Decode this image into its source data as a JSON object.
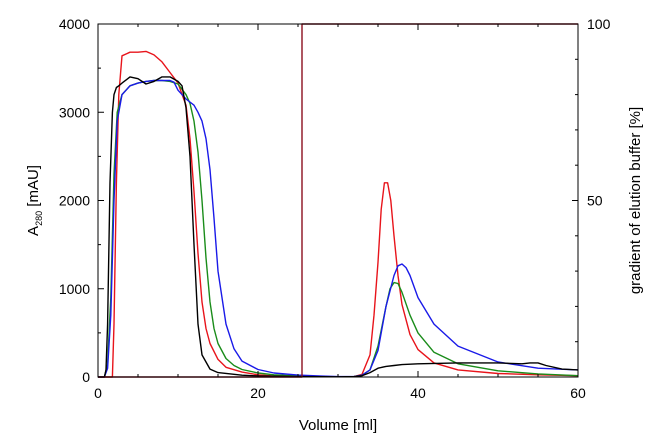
{
  "chart_data": {
    "type": "line",
    "xlabel": "Volume [ml]",
    "ylabel_main": "A",
    "ylabel_sub": "280",
    "ylabel_unit": " [mAU]",
    "y2label": "gradient of elution buffer [%]",
    "xlim": [
      0,
      60
    ],
    "ylim": [
      0,
      4000
    ],
    "y2lim": [
      0,
      100
    ],
    "xticks": [
      0,
      20,
      40,
      60
    ],
    "yticks": [
      0,
      1000,
      2000,
      3000,
      4000
    ],
    "y2ticks": [
      50,
      100
    ],
    "grid": false,
    "series": [
      {
        "color": "#e8141b",
        "x": [
          0,
          1,
          1.8,
          2,
          2.3,
          2.6,
          3,
          4,
          5,
          6,
          7,
          8,
          9,
          10,
          11,
          11.5,
          12,
          12.5,
          13,
          13.5,
          14,
          15,
          16,
          18,
          20,
          22,
          25,
          28,
          30,
          32,
          33,
          34,
          34.5,
          35,
          35.4,
          35.8,
          36.2,
          36.6,
          37,
          37.5,
          38,
          39,
          40,
          42,
          45,
          50,
          55,
          60
        ],
        "y": [
          0,
          0,
          0,
          600,
          2200,
          3200,
          3640,
          3680,
          3680,
          3690,
          3650,
          3570,
          3450,
          3330,
          3080,
          2700,
          2100,
          1400,
          850,
          550,
          380,
          200,
          110,
          55,
          25,
          10,
          5,
          3,
          3,
          5,
          30,
          250,
          700,
          1300,
          1900,
          2200,
          2200,
          2000,
          1600,
          1150,
          820,
          480,
          310,
          160,
          80,
          40,
          25,
          15
        ]
      },
      {
        "color": "#1a8c1a",
        "x": [
          0,
          0.8,
          1.2,
          1.6,
          2,
          2.4,
          3,
          4,
          5,
          6,
          7,
          8,
          9,
          10,
          10.5,
          11,
          11.5,
          12,
          12.5,
          13,
          13.5,
          14,
          14.5,
          15,
          16,
          17,
          18,
          20,
          22,
          25,
          28,
          30,
          32,
          33,
          34,
          35,
          36,
          36.5,
          37,
          37.5,
          38,
          39,
          40,
          42,
          45,
          50,
          55,
          60
        ],
        "y": [
          0,
          0,
          150,
          900,
          2300,
          3000,
          3200,
          3300,
          3330,
          3350,
          3360,
          3360,
          3350,
          3320,
          3260,
          3200,
          3100,
          2900,
          2550,
          2000,
          1350,
          850,
          550,
          380,
          210,
          130,
          85,
          45,
          25,
          12,
          5,
          3,
          5,
          20,
          80,
          350,
          800,
          1000,
          1070,
          1060,
          960,
          700,
          500,
          280,
          150,
          70,
          35,
          15
        ]
      },
      {
        "color": "#1a1ae8",
        "x": [
          0,
          0.8,
          1.2,
          1.6,
          2,
          2.4,
          3,
          4,
          5,
          6,
          7,
          8,
          9,
          9.5,
          10,
          11,
          12,
          12.5,
          13,
          13.5,
          14,
          14.5,
          15,
          16,
          17,
          18,
          20,
          22,
          25,
          28,
          30,
          32,
          33,
          34,
          35,
          36,
          37,
          37.5,
          38,
          38.5,
          39,
          40,
          42,
          45,
          50,
          55,
          60
        ],
        "y": [
          0,
          0,
          100,
          700,
          2000,
          2900,
          3200,
          3300,
          3330,
          3350,
          3360,
          3360,
          3360,
          3340,
          3250,
          3150,
          3080,
          3000,
          2900,
          2700,
          2350,
          1800,
          1200,
          600,
          320,
          180,
          85,
          45,
          22,
          10,
          5,
          4,
          20,
          80,
          300,
          800,
          1150,
          1260,
          1280,
          1240,
          1150,
          900,
          600,
          350,
          170,
          100,
          80
        ]
      },
      {
        "color": "#000000",
        "x": [
          0,
          0.8,
          1,
          1.2,
          1.5,
          1.8,
          2,
          2.3,
          2.6,
          3,
          4,
          5,
          6,
          7,
          8,
          9,
          10,
          10.5,
          11,
          11.5,
          12,
          12.5,
          13,
          14,
          15,
          18,
          20,
          25,
          28,
          30,
          32,
          33,
          34,
          35,
          36,
          37,
          38,
          40,
          45,
          50,
          53,
          54,
          55,
          56,
          58,
          60
        ],
        "y": [
          0,
          0,
          80,
          600,
          2200,
          3000,
          3200,
          3280,
          3300,
          3330,
          3400,
          3380,
          3320,
          3350,
          3400,
          3400,
          3350,
          3300,
          3050,
          2500,
          1500,
          600,
          250,
          90,
          50,
          20,
          12,
          5,
          3,
          2,
          5,
          15,
          50,
          100,
          120,
          130,
          140,
          150,
          160,
          160,
          150,
          160,
          160,
          130,
          90,
          80
        ]
      },
      {
        "color": "#8b0f1e",
        "axis": "right",
        "x": [
          0,
          25.5,
          25.5,
          60
        ],
        "y": [
          0,
          0,
          100,
          100
        ]
      }
    ]
  }
}
